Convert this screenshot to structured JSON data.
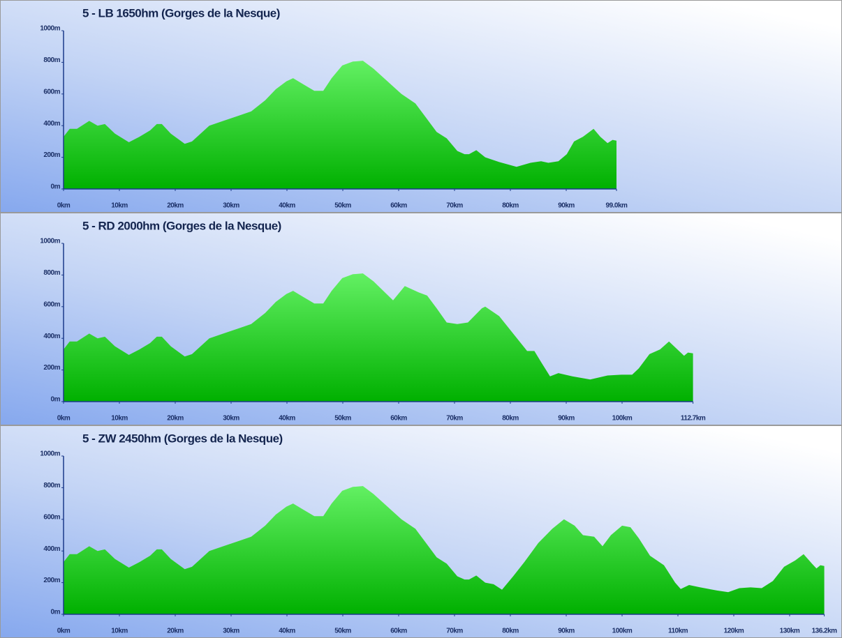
{
  "chart_data": [
    {
      "type": "area",
      "title": "5 - LB 1650hm (Gorges de la Nesque)",
      "gradient": [
        "#7aff7a",
        "#00b000"
      ],
      "x": [
        0,
        1.1,
        2.4,
        4.6,
        6.1,
        7.4,
        9.2,
        11.7,
        13.6,
        15.5,
        16.7,
        17.6,
        19.2,
        21.7,
        23,
        26.1,
        28.6,
        31.1,
        33.6,
        36.1,
        38,
        39.9,
        41.1,
        43,
        44.9,
        46.5,
        48,
        49.9,
        51.8,
        53.6,
        55.5,
        58,
        60.5,
        63,
        64.9,
        66.8,
        68.6,
        70.5,
        71.8,
        72.6,
        73.9,
        75.5,
        78,
        81.1,
        83.6,
        85.5,
        86.8,
        88.6,
        90.1,
        91.4,
        93,
        94.9,
        96.1,
        97.4,
        98.3,
        99
      ],
      "values": [
        330,
        380,
        380,
        430,
        400,
        410,
        350,
        295,
        330,
        370,
        410,
        410,
        350,
        285,
        300,
        400,
        430,
        460,
        490,
        560,
        630,
        680,
        700,
        660,
        620,
        620,
        700,
        780,
        805,
        810,
        760,
        680,
        600,
        540,
        450,
        360,
        320,
        240,
        220,
        220,
        245,
        200,
        170,
        140,
        165,
        175,
        165,
        175,
        220,
        300,
        330,
        380,
        330,
        290,
        310,
        305
      ],
      "xlim": [
        0,
        99
      ],
      "ylim": [
        0,
        1000
      ],
      "xticks": [
        {
          "value": 0,
          "label": "0km"
        },
        {
          "value": 10,
          "label": "10km"
        },
        {
          "value": 20,
          "label": "20km"
        },
        {
          "value": 30,
          "label": "30km"
        },
        {
          "value": 40,
          "label": "40km"
        },
        {
          "value": 50,
          "label": "50km"
        },
        {
          "value": 60,
          "label": "60km"
        },
        {
          "value": 70,
          "label": "70km"
        },
        {
          "value": 80,
          "label": "80km"
        },
        {
          "value": 90,
          "label": "90km"
        },
        {
          "value": 99,
          "label": "99.0km"
        }
      ],
      "yticks": [
        {
          "value": 0,
          "label": "0m"
        },
        {
          "value": 200,
          "label": "200m"
        },
        {
          "value": 400,
          "label": "400m"
        },
        {
          "value": 600,
          "label": "600m"
        },
        {
          "value": 800,
          "label": "800m"
        },
        {
          "value": 1000,
          "label": "1000m"
        }
      ]
    },
    {
      "type": "area",
      "title": "5 - RD 2000hm (Gorges de la Nesque)",
      "gradient": [
        "#7aff7a",
        "#00b000"
      ],
      "x": [
        0,
        1.1,
        2.4,
        4.6,
        6.1,
        7.4,
        9.2,
        11.7,
        13.6,
        15.5,
        16.7,
        17.6,
        19.2,
        21.7,
        23,
        26.1,
        28.6,
        31.1,
        33.6,
        36.1,
        38,
        39.9,
        41.1,
        43,
        44.9,
        46.5,
        48,
        49.9,
        51.8,
        53.6,
        55.5,
        59,
        61.1,
        63.6,
        65.1,
        66.8,
        68.6,
        70.5,
        72.4,
        74.9,
        75.5,
        78,
        80.5,
        83,
        84.3,
        85.5,
        87.1,
        88.6,
        91.1,
        94.3,
        97.4,
        99.9,
        101.8,
        103,
        104.9,
        106.8,
        108.4,
        109.9,
        111.1,
        111.8,
        112.7
      ],
      "values": [
        330,
        380,
        380,
        430,
        400,
        410,
        350,
        295,
        330,
        370,
        410,
        410,
        350,
        285,
        300,
        400,
        430,
        460,
        490,
        560,
        630,
        680,
        700,
        660,
        620,
        620,
        700,
        780,
        805,
        810,
        760,
        640,
        730,
        690,
        670,
        590,
        500,
        490,
        500,
        590,
        600,
        540,
        430,
        320,
        320,
        250,
        160,
        180,
        160,
        140,
        165,
        170,
        170,
        210,
        300,
        330,
        380,
        330,
        290,
        310,
        305
      ],
      "xlim": [
        0,
        112.7
      ],
      "ylim": [
        0,
        1000
      ],
      "xticks": [
        {
          "value": 0,
          "label": "0km"
        },
        {
          "value": 10,
          "label": "10km"
        },
        {
          "value": 20,
          "label": "20km"
        },
        {
          "value": 30,
          "label": "30km"
        },
        {
          "value": 40,
          "label": "40km"
        },
        {
          "value": 50,
          "label": "50km"
        },
        {
          "value": 60,
          "label": "60km"
        },
        {
          "value": 70,
          "label": "70km"
        },
        {
          "value": 80,
          "label": "80km"
        },
        {
          "value": 90,
          "label": "90km"
        },
        {
          "value": 100,
          "label": "100km"
        },
        {
          "value": 112.7,
          "label": "112.7km"
        }
      ],
      "yticks": [
        {
          "value": 0,
          "label": "0m"
        },
        {
          "value": 200,
          "label": "200m"
        },
        {
          "value": 400,
          "label": "400m"
        },
        {
          "value": 600,
          "label": "600m"
        },
        {
          "value": 800,
          "label": "800m"
        },
        {
          "value": 1000,
          "label": "1000m"
        }
      ]
    },
    {
      "type": "area",
      "title": "5 - ZW 2450hm (Gorges de la Nesque)",
      "gradient": [
        "#7aff7a",
        "#00b000"
      ],
      "x": [
        0,
        1.1,
        2.4,
        4.6,
        6.1,
        7.4,
        9.2,
        11.7,
        13.6,
        15.5,
        16.7,
        17.6,
        19.2,
        21.7,
        23,
        26.1,
        28.6,
        31.1,
        33.6,
        36.1,
        38,
        39.9,
        41.1,
        43,
        44.9,
        46.5,
        48,
        49.9,
        51.8,
        53.6,
        55.5,
        58,
        60.5,
        63,
        64.9,
        66.8,
        68.6,
        70.5,
        71.8,
        72.6,
        73.9,
        75.5,
        77,
        78.5,
        80.5,
        82.5,
        85,
        87.5,
        89.6,
        91.5,
        93,
        95,
        96.5,
        98,
        100,
        101.5,
        103,
        105,
        107.5,
        109.5,
        110.5,
        112,
        114,
        117,
        119,
        121,
        123,
        125,
        127,
        129,
        131,
        132.5,
        134,
        134.8,
        135.5,
        136.2
      ],
      "values": [
        330,
        380,
        380,
        430,
        400,
        410,
        350,
        295,
        330,
        370,
        410,
        410,
        350,
        285,
        300,
        400,
        430,
        460,
        490,
        560,
        630,
        680,
        700,
        660,
        620,
        620,
        700,
        780,
        805,
        810,
        760,
        680,
        600,
        540,
        450,
        360,
        320,
        240,
        220,
        220,
        245,
        200,
        190,
        155,
        240,
        330,
        450,
        540,
        600,
        560,
        500,
        490,
        430,
        500,
        560,
        550,
        480,
        370,
        310,
        200,
        160,
        185,
        170,
        150,
        140,
        165,
        170,
        165,
        210,
        300,
        340,
        380,
        320,
        290,
        310,
        305
      ],
      "xlim": [
        0,
        136.2
      ],
      "ylim": [
        0,
        1000
      ],
      "xticks": [
        {
          "value": 0,
          "label": "0km"
        },
        {
          "value": 10,
          "label": "10km"
        },
        {
          "value": 20,
          "label": "20km"
        },
        {
          "value": 30,
          "label": "30km"
        },
        {
          "value": 40,
          "label": "40km"
        },
        {
          "value": 50,
          "label": "50km"
        },
        {
          "value": 60,
          "label": "60km"
        },
        {
          "value": 70,
          "label": "70km"
        },
        {
          "value": 80,
          "label": "80km"
        },
        {
          "value": 90,
          "label": "90km"
        },
        {
          "value": 100,
          "label": "100km"
        },
        {
          "value": 110,
          "label": "110km"
        },
        {
          "value": 120,
          "label": "120km"
        },
        {
          "value": 130,
          "label": "130km"
        },
        {
          "value": 136.2,
          "label": "136.2km"
        }
      ],
      "yticks": [
        {
          "value": 0,
          "label": "0m"
        },
        {
          "value": 200,
          "label": "200m"
        },
        {
          "value": 400,
          "label": "400m"
        },
        {
          "value": 600,
          "label": "600m"
        },
        {
          "value": 800,
          "label": "800m"
        },
        {
          "value": 1000,
          "label": "1000m"
        }
      ]
    }
  ]
}
